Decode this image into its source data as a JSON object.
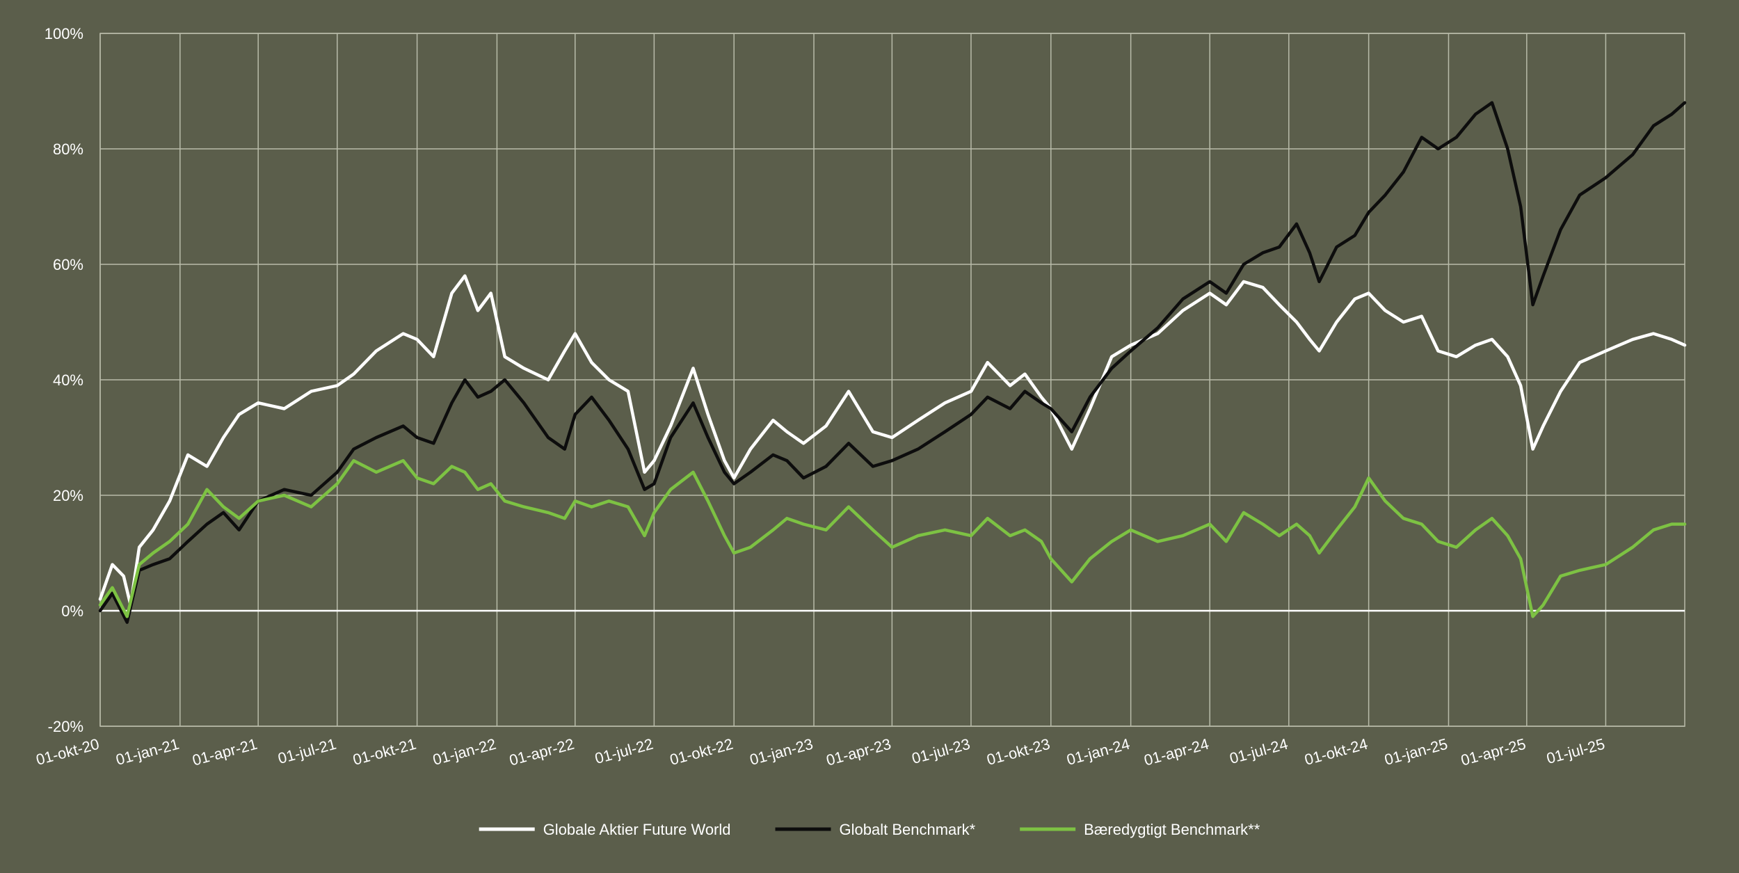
{
  "chart_data": {
    "type": "line",
    "title": "",
    "xlabel": "",
    "ylabel": "",
    "ylim": [
      -20,
      100
    ],
    "y_unit": "%",
    "y_ticks": [
      -20,
      0,
      20,
      40,
      60,
      80,
      100
    ],
    "y_tick_labels": [
      "-20%",
      "0%",
      "20%",
      "40%",
      "60%",
      "80%",
      "100%"
    ],
    "x_range": [
      "2020-10-01",
      "2025-09-30"
    ],
    "x_ticks": [
      "2020-10-01",
      "2021-01-01",
      "2021-04-01",
      "2021-07-01",
      "2021-10-01",
      "2022-01-01",
      "2022-04-01",
      "2022-07-01",
      "2022-10-01",
      "2023-01-01",
      "2023-04-01",
      "2023-07-01",
      "2023-10-01",
      "2024-01-01",
      "2024-04-01",
      "2024-07-01",
      "2024-10-01",
      "2025-01-01",
      "2025-04-01",
      "2025-07-01"
    ],
    "x_tick_labels": [
      "01-okt-20",
      "01-jan-21",
      "01-apr-21",
      "01-jul-21",
      "01-okt-21",
      "01-jan-22",
      "01-apr-22",
      "01-jul-22",
      "01-okt-22",
      "01-jan-23",
      "01-apr-23",
      "01-jul-23",
      "01-okt-23",
      "01-jan-24",
      "01-apr-24",
      "01-jul-24",
      "01-okt-24",
      "01-jan-25",
      "01-apr-25",
      "01-jul-25"
    ],
    "grid": true,
    "legend_position": "bottom",
    "background_color": "#5b5e4b",
    "grid_color": "#b9bcaa",
    "zero_line_color": "#ffffff",
    "text_color": "#ffffff",
    "series": [
      {
        "name": "Globale Aktier Future World",
        "color": "#ffffff",
        "points": [
          [
            "2020-10-01",
            2
          ],
          [
            "2020-10-15",
            8
          ],
          [
            "2020-10-28",
            6
          ],
          [
            "2020-11-05",
            1
          ],
          [
            "2020-11-15",
            11
          ],
          [
            "2020-12-01",
            14
          ],
          [
            "2020-12-20",
            19
          ],
          [
            "2021-01-10",
            27
          ],
          [
            "2021-02-01",
            25
          ],
          [
            "2021-02-20",
            30
          ],
          [
            "2021-03-10",
            34
          ],
          [
            "2021-04-01",
            36
          ],
          [
            "2021-05-01",
            35
          ],
          [
            "2021-06-01",
            38
          ],
          [
            "2021-07-01",
            39
          ],
          [
            "2021-07-20",
            41
          ],
          [
            "2021-08-15",
            45
          ],
          [
            "2021-09-15",
            48
          ],
          [
            "2021-10-01",
            47
          ],
          [
            "2021-10-20",
            44
          ],
          [
            "2021-11-10",
            55
          ],
          [
            "2021-11-25",
            58
          ],
          [
            "2021-12-10",
            52
          ],
          [
            "2021-12-25",
            55
          ],
          [
            "2022-01-10",
            44
          ],
          [
            "2022-02-01",
            42
          ],
          [
            "2022-03-01",
            40
          ],
          [
            "2022-03-20",
            45
          ],
          [
            "2022-04-01",
            48
          ],
          [
            "2022-04-20",
            43
          ],
          [
            "2022-05-10",
            40
          ],
          [
            "2022-06-01",
            38
          ],
          [
            "2022-06-20",
            24
          ],
          [
            "2022-07-01",
            26
          ],
          [
            "2022-07-20",
            32
          ],
          [
            "2022-08-15",
            42
          ],
          [
            "2022-09-01",
            34
          ],
          [
            "2022-09-20",
            26
          ],
          [
            "2022-10-01",
            23
          ],
          [
            "2022-10-20",
            28
          ],
          [
            "2022-11-15",
            33
          ],
          [
            "2022-12-01",
            31
          ],
          [
            "2022-12-20",
            29
          ],
          [
            "2023-01-15",
            32
          ],
          [
            "2023-02-10",
            38
          ],
          [
            "2023-03-10",
            31
          ],
          [
            "2023-04-01",
            30
          ],
          [
            "2023-05-01",
            33
          ],
          [
            "2023-06-01",
            36
          ],
          [
            "2023-07-01",
            38
          ],
          [
            "2023-07-20",
            43
          ],
          [
            "2023-08-15",
            39
          ],
          [
            "2023-09-01",
            41
          ],
          [
            "2023-09-20",
            37
          ],
          [
            "2023-10-01",
            35
          ],
          [
            "2023-10-25",
            28
          ],
          [
            "2023-11-15",
            35
          ],
          [
            "2023-12-10",
            44
          ],
          [
            "2024-01-01",
            46
          ],
          [
            "2024-02-01",
            48
          ],
          [
            "2024-03-01",
            52
          ],
          [
            "2024-04-01",
            55
          ],
          [
            "2024-04-20",
            53
          ],
          [
            "2024-05-10",
            57
          ],
          [
            "2024-06-01",
            56
          ],
          [
            "2024-06-20",
            53
          ],
          [
            "2024-07-10",
            50
          ],
          [
            "2024-07-25",
            47
          ],
          [
            "2024-08-05",
            45
          ],
          [
            "2024-08-25",
            50
          ],
          [
            "2024-09-15",
            54
          ],
          [
            "2024-10-01",
            55
          ],
          [
            "2024-10-20",
            52
          ],
          [
            "2024-11-10",
            50
          ],
          [
            "2024-12-01",
            51
          ],
          [
            "2024-12-20",
            45
          ],
          [
            "2025-01-10",
            44
          ],
          [
            "2025-02-01",
            46
          ],
          [
            "2025-02-20",
            47
          ],
          [
            "2025-03-10",
            44
          ],
          [
            "2025-03-25",
            39
          ],
          [
            "2025-04-08",
            28
          ],
          [
            "2025-04-20",
            32
          ],
          [
            "2025-05-10",
            38
          ],
          [
            "2025-06-01",
            43
          ],
          [
            "2025-07-01",
            45
          ],
          [
            "2025-08-01",
            47
          ],
          [
            "2025-08-25",
            48
          ],
          [
            "2025-09-15",
            47
          ],
          [
            "2025-09-30",
            46
          ]
        ]
      },
      {
        "name": "Globalt Benchmark*",
        "color": "#0d0d0d",
        "points": [
          [
            "2020-10-01",
            0
          ],
          [
            "2020-10-15",
            3
          ],
          [
            "2020-11-01",
            -2
          ],
          [
            "2020-11-15",
            7
          ],
          [
            "2020-12-01",
            8
          ],
          [
            "2020-12-20",
            9
          ],
          [
            "2021-01-10",
            12
          ],
          [
            "2021-02-01",
            15
          ],
          [
            "2021-02-20",
            17
          ],
          [
            "2021-03-10",
            14
          ],
          [
            "2021-04-01",
            19
          ],
          [
            "2021-05-01",
            21
          ],
          [
            "2021-06-01",
            20
          ],
          [
            "2021-07-01",
            24
          ],
          [
            "2021-07-20",
            28
          ],
          [
            "2021-08-15",
            30
          ],
          [
            "2021-09-15",
            32
          ],
          [
            "2021-10-01",
            30
          ],
          [
            "2021-10-20",
            29
          ],
          [
            "2021-11-10",
            36
          ],
          [
            "2021-11-25",
            40
          ],
          [
            "2021-12-10",
            37
          ],
          [
            "2021-12-25",
            38
          ],
          [
            "2022-01-10",
            40
          ],
          [
            "2022-02-01",
            36
          ],
          [
            "2022-03-01",
            30
          ],
          [
            "2022-03-20",
            28
          ],
          [
            "2022-04-01",
            34
          ],
          [
            "2022-04-20",
            37
          ],
          [
            "2022-05-10",
            33
          ],
          [
            "2022-06-01",
            28
          ],
          [
            "2022-06-20",
            21
          ],
          [
            "2022-07-01",
            22
          ],
          [
            "2022-07-20",
            30
          ],
          [
            "2022-08-15",
            36
          ],
          [
            "2022-09-01",
            30
          ],
          [
            "2022-09-20",
            24
          ],
          [
            "2022-10-01",
            22
          ],
          [
            "2022-10-20",
            24
          ],
          [
            "2022-11-15",
            27
          ],
          [
            "2022-12-01",
            26
          ],
          [
            "2022-12-20",
            23
          ],
          [
            "2023-01-15",
            25
          ],
          [
            "2023-02-10",
            29
          ],
          [
            "2023-03-10",
            25
          ],
          [
            "2023-04-01",
            26
          ],
          [
            "2023-05-01",
            28
          ],
          [
            "2023-06-01",
            31
          ],
          [
            "2023-07-01",
            34
          ],
          [
            "2023-07-20",
            37
          ],
          [
            "2023-08-15",
            35
          ],
          [
            "2023-09-01",
            38
          ],
          [
            "2023-09-20",
            36
          ],
          [
            "2023-10-01",
            35
          ],
          [
            "2023-10-25",
            31
          ],
          [
            "2023-11-15",
            37
          ],
          [
            "2023-12-10",
            42
          ],
          [
            "2024-01-01",
            45
          ],
          [
            "2024-02-01",
            49
          ],
          [
            "2024-03-01",
            54
          ],
          [
            "2024-04-01",
            57
          ],
          [
            "2024-04-20",
            55
          ],
          [
            "2024-05-10",
            60
          ],
          [
            "2024-06-01",
            62
          ],
          [
            "2024-06-20",
            63
          ],
          [
            "2024-07-10",
            67
          ],
          [
            "2024-07-25",
            62
          ],
          [
            "2024-08-05",
            57
          ],
          [
            "2024-08-25",
            63
          ],
          [
            "2024-09-15",
            65
          ],
          [
            "2024-10-01",
            69
          ],
          [
            "2024-10-20",
            72
          ],
          [
            "2024-11-10",
            76
          ],
          [
            "2024-12-01",
            82
          ],
          [
            "2024-12-20",
            80
          ],
          [
            "2025-01-10",
            82
          ],
          [
            "2025-02-01",
            86
          ],
          [
            "2025-02-20",
            88
          ],
          [
            "2025-03-10",
            80
          ],
          [
            "2025-03-25",
            70
          ],
          [
            "2025-04-08",
            53
          ],
          [
            "2025-04-20",
            58
          ],
          [
            "2025-05-10",
            66
          ],
          [
            "2025-06-01",
            72
          ],
          [
            "2025-07-01",
            75
          ],
          [
            "2025-08-01",
            79
          ],
          [
            "2025-08-25",
            84
          ],
          [
            "2025-09-15",
            86
          ],
          [
            "2025-09-30",
            88
          ]
        ]
      },
      {
        "name": "Bæredygtigt Benchmark**",
        "color": "#7dc243",
        "points": [
          [
            "2020-10-01",
            1
          ],
          [
            "2020-10-15",
            4
          ],
          [
            "2020-11-01",
            -1
          ],
          [
            "2020-11-15",
            8
          ],
          [
            "2020-12-01",
            10
          ],
          [
            "2020-12-20",
            12
          ],
          [
            "2021-01-10",
            15
          ],
          [
            "2021-02-01",
            21
          ],
          [
            "2021-02-20",
            18
          ],
          [
            "2021-03-10",
            16
          ],
          [
            "2021-04-01",
            19
          ],
          [
            "2021-05-01",
            20
          ],
          [
            "2021-06-01",
            18
          ],
          [
            "2021-07-01",
            22
          ],
          [
            "2021-07-20",
            26
          ],
          [
            "2021-08-15",
            24
          ],
          [
            "2021-09-15",
            26
          ],
          [
            "2021-10-01",
            23
          ],
          [
            "2021-10-20",
            22
          ],
          [
            "2021-11-10",
            25
          ],
          [
            "2021-11-25",
            24
          ],
          [
            "2021-12-10",
            21
          ],
          [
            "2021-12-25",
            22
          ],
          [
            "2022-01-10",
            19
          ],
          [
            "2022-02-01",
            18
          ],
          [
            "2022-03-01",
            17
          ],
          [
            "2022-03-20",
            16
          ],
          [
            "2022-04-01",
            19
          ],
          [
            "2022-04-20",
            18
          ],
          [
            "2022-05-10",
            19
          ],
          [
            "2022-06-01",
            18
          ],
          [
            "2022-06-20",
            13
          ],
          [
            "2022-07-01",
            17
          ],
          [
            "2022-07-20",
            21
          ],
          [
            "2022-08-15",
            24
          ],
          [
            "2022-09-01",
            19
          ],
          [
            "2022-09-20",
            13
          ],
          [
            "2022-10-01",
            10
          ],
          [
            "2022-10-20",
            11
          ],
          [
            "2022-11-15",
            14
          ],
          [
            "2022-12-01",
            16
          ],
          [
            "2022-12-20",
            15
          ],
          [
            "2023-01-15",
            14
          ],
          [
            "2023-02-10",
            18
          ],
          [
            "2023-03-10",
            14
          ],
          [
            "2023-04-01",
            11
          ],
          [
            "2023-05-01",
            13
          ],
          [
            "2023-06-01",
            14
          ],
          [
            "2023-07-01",
            13
          ],
          [
            "2023-07-20",
            16
          ],
          [
            "2023-08-15",
            13
          ],
          [
            "2023-09-01",
            14
          ],
          [
            "2023-09-20",
            12
          ],
          [
            "2023-10-01",
            9
          ],
          [
            "2023-10-25",
            5
          ],
          [
            "2023-11-15",
            9
          ],
          [
            "2023-12-10",
            12
          ],
          [
            "2024-01-01",
            14
          ],
          [
            "2024-02-01",
            12
          ],
          [
            "2024-03-01",
            13
          ],
          [
            "2024-04-01",
            15
          ],
          [
            "2024-04-20",
            12
          ],
          [
            "2024-05-10",
            17
          ],
          [
            "2024-06-01",
            15
          ],
          [
            "2024-06-20",
            13
          ],
          [
            "2024-07-10",
            15
          ],
          [
            "2024-07-25",
            13
          ],
          [
            "2024-08-05",
            10
          ],
          [
            "2024-08-25",
            14
          ],
          [
            "2024-09-15",
            18
          ],
          [
            "2024-10-01",
            23
          ],
          [
            "2024-10-20",
            19
          ],
          [
            "2024-11-10",
            16
          ],
          [
            "2024-12-01",
            15
          ],
          [
            "2024-12-20",
            12
          ],
          [
            "2025-01-10",
            11
          ],
          [
            "2025-02-01",
            14
          ],
          [
            "2025-02-20",
            16
          ],
          [
            "2025-03-10",
            13
          ],
          [
            "2025-03-25",
            9
          ],
          [
            "2025-04-08",
            -1
          ],
          [
            "2025-04-20",
            1
          ],
          [
            "2025-05-10",
            6
          ],
          [
            "2025-06-01",
            7
          ],
          [
            "2025-07-01",
            8
          ],
          [
            "2025-08-01",
            11
          ],
          [
            "2025-08-25",
            14
          ],
          [
            "2025-09-15",
            15
          ],
          [
            "2025-09-30",
            15
          ]
        ]
      }
    ]
  }
}
